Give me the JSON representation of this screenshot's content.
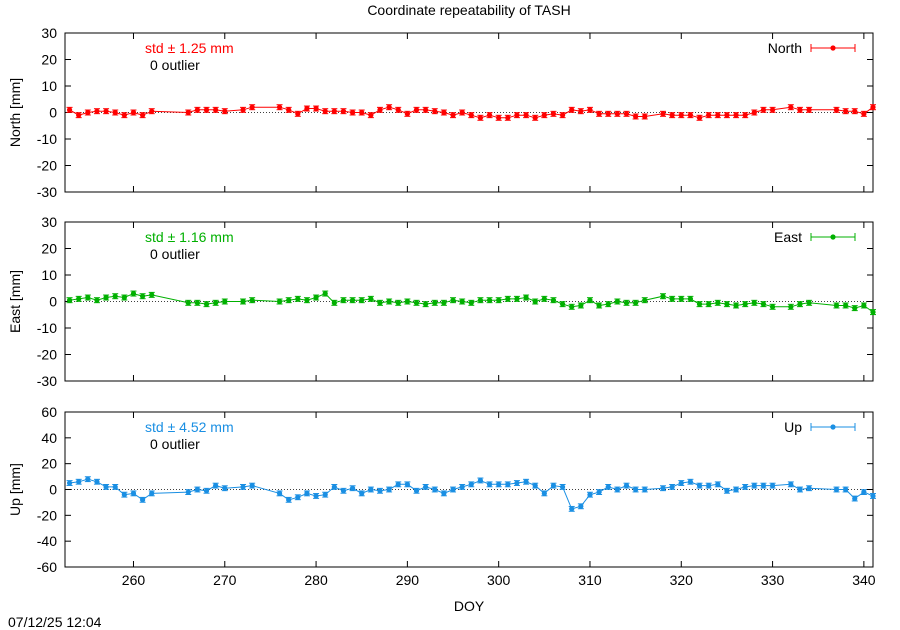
{
  "title": "Coordinate repeatability of TASH",
  "timestamp": "07/12/25 12:04",
  "xlabel": "DOY",
  "chart_data": [
    {
      "type": "line",
      "name": "North",
      "ylabel": "North [mm]",
      "color": "#ff0000",
      "std_text": "std ± 1.25 mm",
      "outlier_text": "0 outlier",
      "ylim": [
        -30,
        30
      ],
      "yticks": [
        30,
        20,
        10,
        0,
        -10,
        -20,
        -30
      ],
      "xlim": [
        252.5,
        341
      ],
      "xticks": [
        260,
        270,
        280,
        290,
        300,
        310,
        320,
        330,
        340
      ],
      "x": [
        253,
        254,
        255,
        256,
        257,
        258,
        259,
        260,
        261,
        262,
        266,
        267,
        268,
        269,
        270,
        272,
        273,
        276,
        277,
        278,
        279,
        280,
        281,
        282,
        283,
        284,
        285,
        286,
        287,
        288,
        289,
        290,
        291,
        292,
        293,
        294,
        295,
        296,
        297,
        298,
        299,
        300,
        301,
        302,
        303,
        304,
        305,
        306,
        307,
        308,
        309,
        310,
        311,
        312,
        313,
        314,
        315,
        316,
        318,
        319,
        320,
        321,
        322,
        323,
        324,
        325,
        326,
        327,
        328,
        329,
        330,
        332,
        333,
        334,
        337,
        338,
        339,
        340,
        341
      ],
      "y": [
        1,
        -1,
        0,
        0.5,
        0.5,
        0,
        -1,
        0,
        -1,
        0.5,
        0,
        1,
        1,
        1,
        0.5,
        1,
        2,
        2,
        1,
        -0.5,
        1.5,
        1.5,
        0.5,
        0.5,
        0.5,
        0,
        0,
        -1,
        1,
        2,
        1,
        -0.5,
        1,
        1,
        0.5,
        0,
        -1,
        0,
        -1,
        -2,
        -1,
        -2,
        -2,
        -1,
        -1,
        -2,
        -1,
        -0.5,
        -1,
        1,
        0.5,
        1,
        -0.5,
        -0.5,
        -0.5,
        -0.5,
        -1.5,
        -1.5,
        -0.5,
        -1,
        -1,
        -1,
        -2,
        -1,
        -1,
        -1,
        -1,
        -1,
        0,
        1,
        1,
        2,
        1,
        1,
        1,
        0.5,
        0.5,
        -0.5,
        2
      ]
    },
    {
      "type": "line",
      "name": "East",
      "ylabel": "East [mm]",
      "color": "#00b000",
      "std_text": "std ± 1.16 mm",
      "outlier_text": "0 outlier",
      "ylim": [
        -30,
        30
      ],
      "yticks": [
        30,
        20,
        10,
        0,
        -10,
        -20,
        -30
      ],
      "xlim": [
        252.5,
        341
      ],
      "xticks": [
        260,
        270,
        280,
        290,
        300,
        310,
        320,
        330,
        340
      ],
      "x": [
        253,
        254,
        255,
        256,
        257,
        258,
        259,
        260,
        261,
        262,
        266,
        267,
        268,
        269,
        270,
        272,
        273,
        276,
        277,
        278,
        279,
        280,
        281,
        282,
        283,
        284,
        285,
        286,
        287,
        288,
        289,
        290,
        291,
        292,
        293,
        294,
        295,
        296,
        297,
        298,
        299,
        300,
        301,
        302,
        303,
        304,
        305,
        306,
        307,
        308,
        309,
        310,
        311,
        312,
        313,
        314,
        315,
        316,
        318,
        319,
        320,
        321,
        322,
        323,
        324,
        325,
        326,
        327,
        328,
        329,
        330,
        332,
        333,
        334,
        337,
        338,
        339,
        340,
        341
      ],
      "y": [
        0.5,
        1,
        1.5,
        0.5,
        1.5,
        2,
        1.5,
        3,
        2,
        2.5,
        -0.5,
        -0.5,
        -1,
        -0.5,
        0,
        0,
        0.5,
        0,
        0.5,
        1,
        0.5,
        1.5,
        3,
        -0.5,
        0.5,
        0.5,
        0.5,
        1,
        -0.5,
        0,
        -0.5,
        0,
        -0.5,
        -1,
        -0.5,
        -0.5,
        0.5,
        0,
        -0.5,
        0.5,
        0.5,
        0.5,
        1,
        1,
        1.5,
        0,
        1,
        0.5,
        -1,
        -2,
        -1.5,
        0.5,
        -1.5,
        -1,
        0,
        -0.5,
        -0.5,
        0.5,
        2,
        1,
        1,
        1,
        -1,
        -1,
        -0.5,
        -1,
        -1.5,
        -1,
        -0.5,
        -1,
        -2,
        -2,
        -1,
        -0.5,
        -1.5,
        -1.5,
        -2.5,
        -1.5,
        -4
      ]
    },
    {
      "type": "line",
      "name": "Up",
      "ylabel": "Up [mm]",
      "color": "#1a8fe3",
      "std_text": "std ± 4.52 mm",
      "outlier_text": "0 outlier",
      "ylim": [
        -60,
        60
      ],
      "yticks": [
        60,
        40,
        20,
        0,
        -20,
        -40,
        -60
      ],
      "xlim": [
        252.5,
        341
      ],
      "xticks": [
        260,
        270,
        280,
        290,
        300,
        310,
        320,
        330,
        340
      ],
      "x": [
        253,
        254,
        255,
        256,
        257,
        258,
        259,
        260,
        261,
        262,
        266,
        267,
        268,
        269,
        270,
        272,
        273,
        276,
        277,
        278,
        279,
        280,
        281,
        282,
        283,
        284,
        285,
        286,
        287,
        288,
        289,
        290,
        291,
        292,
        293,
        294,
        295,
        296,
        297,
        298,
        299,
        300,
        301,
        302,
        303,
        304,
        305,
        306,
        307,
        308,
        309,
        310,
        311,
        312,
        313,
        314,
        315,
        316,
        318,
        319,
        320,
        321,
        322,
        323,
        324,
        325,
        326,
        327,
        328,
        329,
        330,
        332,
        333,
        334,
        337,
        338,
        339,
        340,
        341
      ],
      "y": [
        5,
        6,
        8,
        6,
        2,
        2,
        -4,
        -3,
        -8,
        -3,
        -2,
        0,
        -1,
        3,
        1,
        2,
        3,
        -3,
        -8,
        -6,
        -3,
        -5,
        -4,
        2,
        -1,
        1,
        -3,
        0,
        -1,
        0,
        4,
        4,
        -1,
        2,
        0,
        -3,
        0,
        2,
        4,
        7,
        4,
        4,
        4,
        5,
        6,
        3,
        -3,
        3,
        2,
        -15,
        -13,
        -4,
        -2,
        2,
        0,
        3,
        0,
        0,
        1,
        2,
        5,
        6,
        3,
        3,
        4,
        -1,
        0,
        2,
        3,
        3,
        3,
        4,
        0,
        1,
        0,
        0,
        -7,
        -2,
        -5
      ]
    }
  ],
  "legend_location": "top-right",
  "grid": false,
  "zero_line": "dotted"
}
